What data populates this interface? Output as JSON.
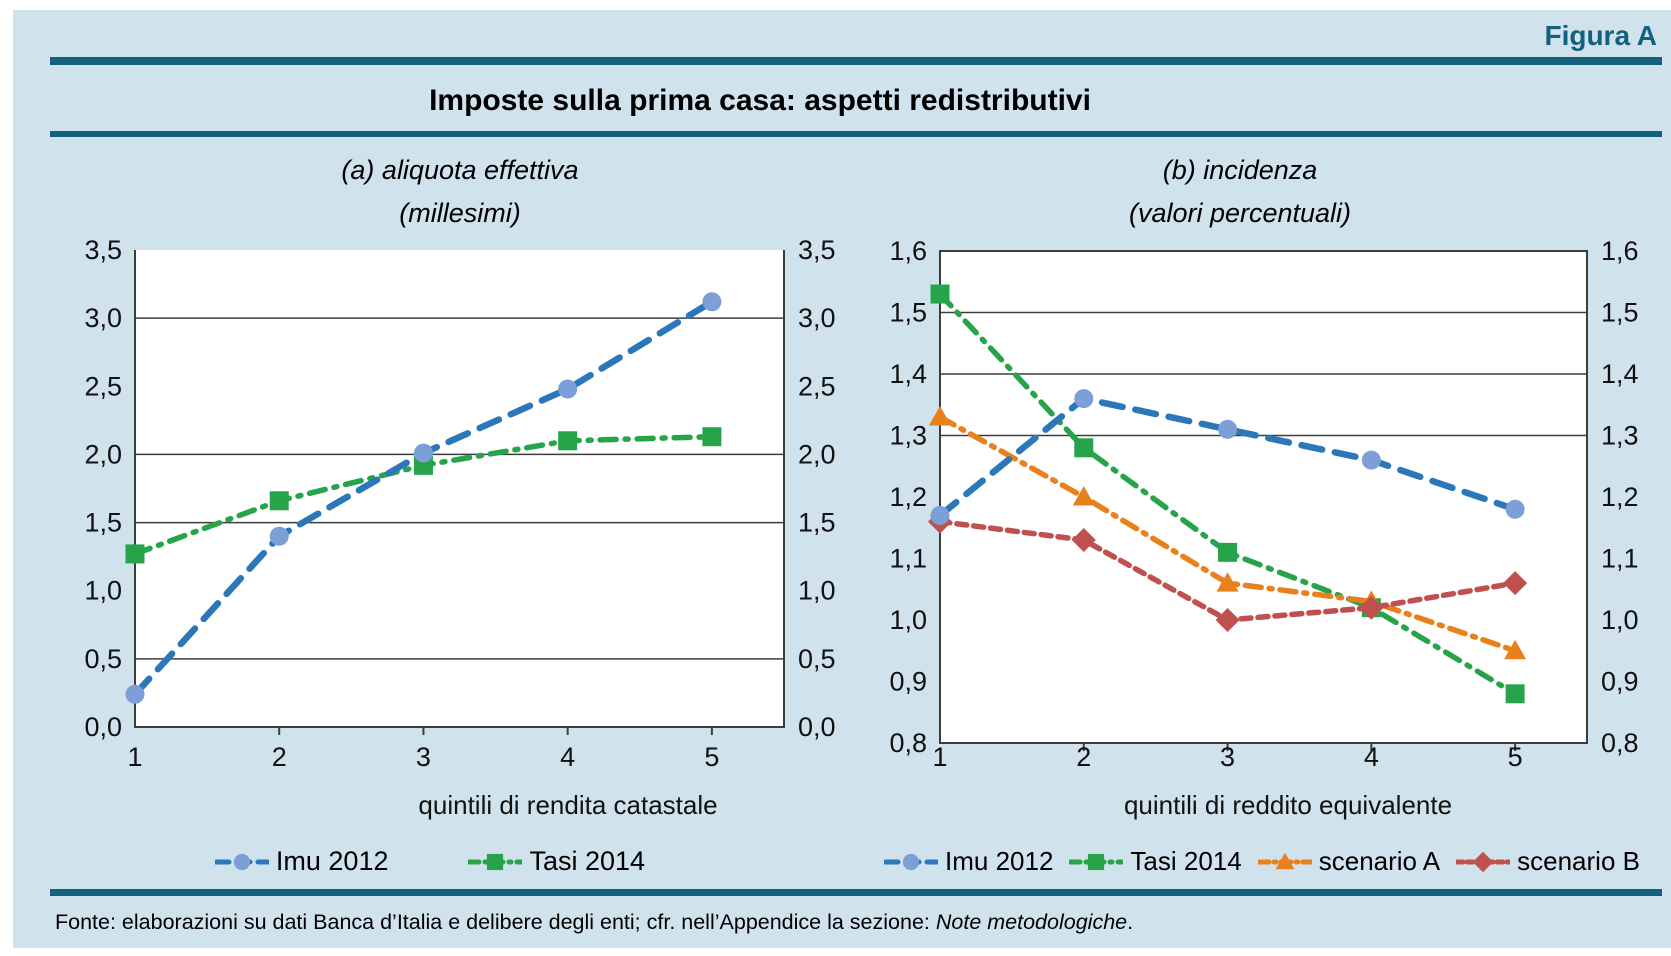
{
  "figure": {
    "tag": "Figura A",
    "title": "Imposte sulla prima casa: aspetti redistributivi",
    "source_prefix": "Fonte: elaborazioni su dati Banca d’Italia e delibere degli enti; cfr. nell’Appendice la sezione: ",
    "source_italic": "Note metodologiche",
    "source_suffix": "."
  },
  "colors": {
    "teal_accent": "#14607f",
    "panel_background": "#d0e2ec",
    "plot_background": "#ffffff",
    "axis_line": "#3d3d3d",
    "imu_line": "#2b77b9",
    "imu_marker": "#7b9fd6",
    "tasi_green": "#27a44a",
    "scenario_a_orange": "#e8811c",
    "scenario_b_red": "#c0504d"
  },
  "chart_data": [
    {
      "type": "line",
      "panel": "a",
      "title": "(a) aliquota effettiva",
      "subtitle": "(millesimi)",
      "xlabel": "quintili di rendita catastale",
      "categories": [
        "1",
        "2",
        "3",
        "4",
        "5"
      ],
      "ylim": [
        0,
        3.5
      ],
      "ytick_step": 0.5,
      "ytick_labels": [
        "0,0",
        "0,5",
        "1,0",
        "1,5",
        "2,0",
        "2,5",
        "3,0",
        "3,5"
      ],
      "gridlines": [
        0.5,
        1.5,
        2.0,
        3.0
      ],
      "legend_position": "bottom",
      "grid": "partial-horizontal",
      "series": [
        {
          "name": "Imu 2012",
          "values": [
            0.24,
            1.4,
            2.01,
            2.48,
            3.12
          ],
          "marker": "circle",
          "color": "#2b77b9",
          "marker_color": "#7b9fd6",
          "width": 6.5,
          "dash": "21 13"
        },
        {
          "name": "Tasi 2014",
          "values": [
            1.27,
            1.66,
            1.92,
            2.1,
            2.13
          ],
          "marker": "square",
          "color": "#27a44a",
          "marker_color": "#27a44a",
          "width": 5.5,
          "dash": "16 9 3 9"
        }
      ],
      "draw_order": [
        1,
        0
      ]
    },
    {
      "type": "line",
      "panel": "b",
      "title": "(b) incidenza",
      "subtitle": "(valori percentuali)",
      "xlabel": "quintili di reddito equivalente",
      "categories": [
        "1",
        "2",
        "3",
        "4",
        "5"
      ],
      "ylim": [
        0.8,
        1.6
      ],
      "ytick_step": 0.1,
      "ytick_labels": [
        "0,8",
        "0,9",
        "1,0",
        "1,1",
        "1,2",
        "1,3",
        "1,4",
        "1,5",
        "1,6"
      ],
      "gridlines": [
        1.3,
        1.4,
        1.5
      ],
      "legend_position": "bottom",
      "grid": "partial-horizontal",
      "series": [
        {
          "name": "Imu 2012",
          "values": [
            1.17,
            1.36,
            1.31,
            1.26,
            1.18
          ],
          "marker": "circle",
          "color": "#2b77b9",
          "marker_color": "#7b9fd6",
          "width": 6.5,
          "dash": "21 13"
        },
        {
          "name": "Tasi 2014",
          "values": [
            1.53,
            1.28,
            1.11,
            1.02,
            0.88
          ],
          "marker": "square",
          "color": "#27a44a",
          "marker_color": "#27a44a",
          "width": 5.5,
          "dash": "16 9 3 9"
        },
        {
          "name": "scenario A",
          "values": [
            1.33,
            1.2,
            1.06,
            1.03,
            0.95
          ],
          "marker": "triangle",
          "color": "#e8811c",
          "marker_color": "#e8811c",
          "width": 5.5,
          "dash": "16 8 3 8"
        },
        {
          "name": "scenario B",
          "values": [
            1.16,
            1.13,
            1.0,
            1.02,
            1.06
          ],
          "marker": "diamond",
          "color": "#c0504d",
          "marker_color": "#c0504d",
          "width": 5.5,
          "dash": "10 7"
        }
      ],
      "draw_order": [
        1,
        2,
        3,
        0
      ]
    }
  ]
}
